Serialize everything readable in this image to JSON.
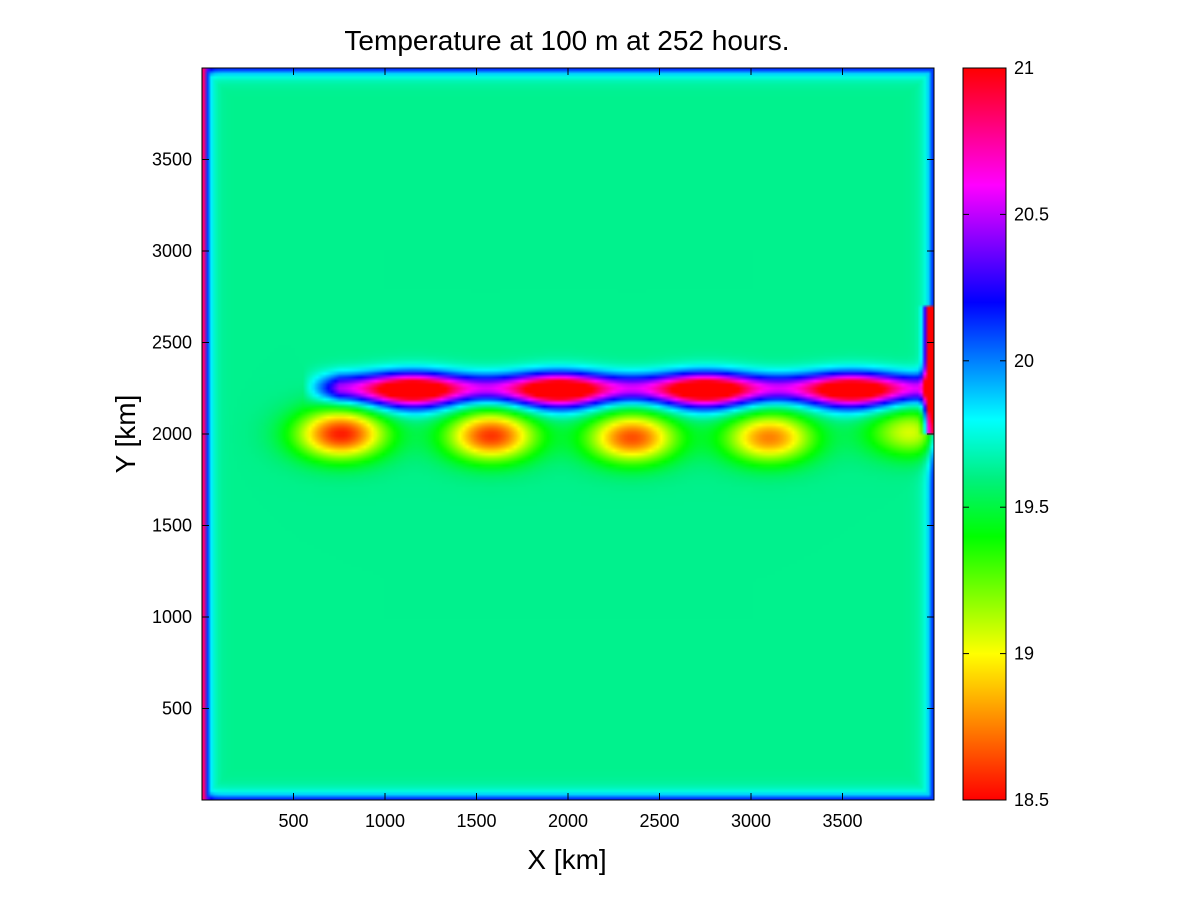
{
  "chart_data": {
    "type": "heatmap",
    "title": "Temperature at 100 m at 252 hours.",
    "xlabel": "X [km]",
    "ylabel": "Y [km]",
    "xlim": [
      0,
      4000
    ],
    "ylim": [
      0,
      4000
    ],
    "xticks": [
      500,
      1000,
      1500,
      2000,
      2500,
      3000,
      3500
    ],
    "yticks": [
      500,
      1000,
      1500,
      2000,
      2500,
      3000,
      3500
    ],
    "colorbar": {
      "range": [
        18.5,
        21
      ],
      "ticks": [
        18.5,
        19,
        19.5,
        20,
        20.5,
        21
      ],
      "colormap": "hsv",
      "stops": [
        {
          "value": 18.5,
          "color": "#ff0000"
        },
        {
          "value": 19.0,
          "color": "#ffff00"
        },
        {
          "value": 19.4,
          "color": "#00ff00"
        },
        {
          "value": 19.6,
          "color": "#00f080"
        },
        {
          "value": 19.8,
          "color": "#00ffff"
        },
        {
          "value": 20.2,
          "color": "#0000ff"
        },
        {
          "value": 20.6,
          "color": "#ff00ff"
        },
        {
          "value": 21.0,
          "color": "#ff0000"
        }
      ]
    },
    "field": {
      "background": 19.62,
      "boundary_value": 20.3,
      "corner_value": 21.0,
      "front": {
        "y": 2250,
        "x_start": 700,
        "x_end": 3950,
        "value": 20.45
      },
      "warm_cores": [
        {
          "x": 760,
          "y": 2000,
          "value": 18.55
        },
        {
          "x": 1580,
          "y": 1990,
          "value": 18.6
        },
        {
          "x": 2350,
          "y": 1980,
          "value": 18.65
        },
        {
          "x": 3100,
          "y": 1980,
          "value": 18.75
        },
        {
          "x": 3880,
          "y": 2010,
          "value": 19.05
        }
      ],
      "cold_lobes": [
        {
          "x": 1150,
          "y": 2230,
          "value": 20.65
        },
        {
          "x": 1950,
          "y": 2230,
          "value": 20.65
        },
        {
          "x": 2750,
          "y": 2230,
          "value": 20.65
        },
        {
          "x": 3550,
          "y": 2230,
          "value": 20.6
        }
      ],
      "east_wall_band": {
        "x": 3980,
        "y_from": 2000,
        "y_to": 2700,
        "value": 21.0
      }
    }
  }
}
